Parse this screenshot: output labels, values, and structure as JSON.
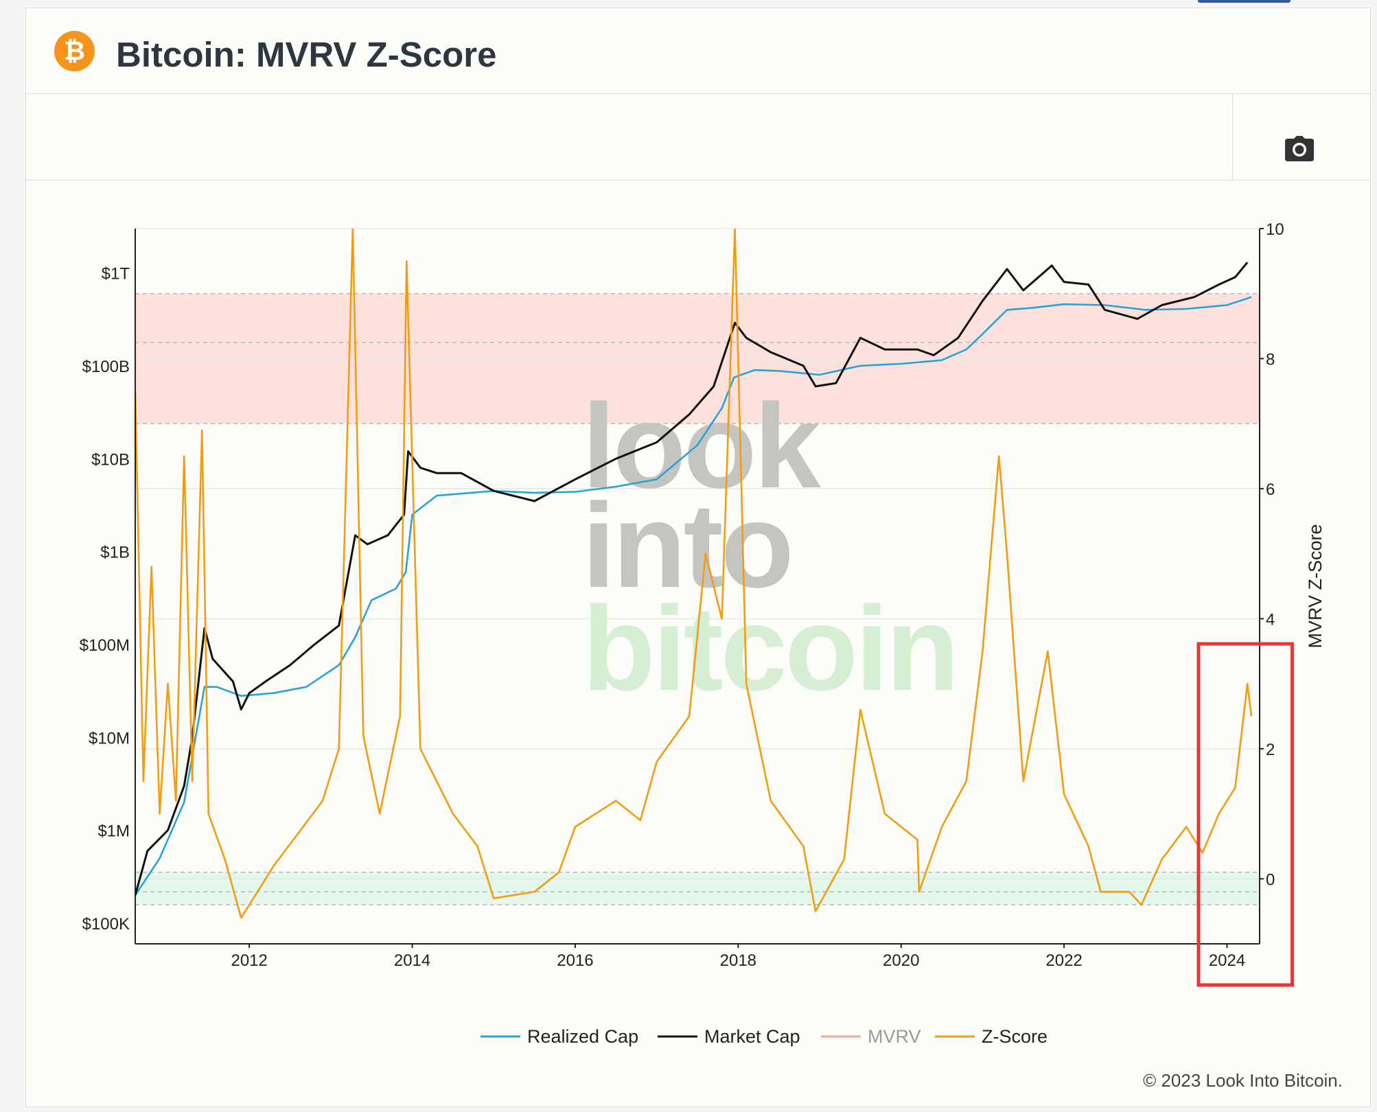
{
  "page": {
    "title": "Bitcoin: MVRV Z-Score",
    "copyright": "© 2023 Look Into Bitcoin.",
    "watermark": [
      "look",
      "into",
      "bitcoin"
    ]
  },
  "icons": {
    "logo": "bitcoin-icon",
    "toolbar": "camera-icon"
  },
  "chart_data": {
    "type": "line",
    "title": "Bitcoin: MVRV Z-Score",
    "x_ticks": [
      "2012",
      "2014",
      "2016",
      "2018",
      "2020",
      "2022",
      "2024"
    ],
    "x_range": [
      2010.6,
      2024.4
    ],
    "left_axis": {
      "scale": "log",
      "label": "",
      "range": [
        60000,
        3000000000000
      ],
      "tick_labels": [
        "$1T",
        "$100B",
        "$10B",
        "$1B",
        "$100M",
        "$10M",
        "$1M",
        "$100K"
      ],
      "tick_values": [
        1000000000000,
        100000000000,
        10000000000,
        1000000000,
        100000000,
        10000000,
        1000000,
        100000
      ]
    },
    "right_axis": {
      "scale": "linear",
      "label": "MVRV Z-Score",
      "range": [
        -1,
        10
      ],
      "tick_labels": [
        "10",
        "8",
        "6",
        "4",
        "2",
        "0"
      ],
      "tick_values": [
        10,
        8,
        6,
        4,
        2,
        0
      ]
    },
    "bands": [
      {
        "name": "overvalued zone",
        "axis": "right",
        "from": 7,
        "to": 9,
        "color": "#fde1dd"
      },
      {
        "name": "undervalued zone",
        "axis": "right",
        "from": -0.4,
        "to": 0.1,
        "color": "#e3f7ec"
      }
    ],
    "dashed_levels": [
      9,
      8.25,
      7,
      0.1,
      -0.2,
      -0.4
    ],
    "series": [
      {
        "name": "Realized Cap",
        "axis": "left",
        "color": "#29a3d6",
        "points": [
          [
            2010.6,
            200000.0
          ],
          [
            2010.9,
            500000.0
          ],
          [
            2011.2,
            2000000.0
          ],
          [
            2011.45,
            35000000.0
          ],
          [
            2011.6,
            35000000.0
          ],
          [
            2011.9,
            28000000.0
          ],
          [
            2012.3,
            30000000.0
          ],
          [
            2012.7,
            35000000.0
          ],
          [
            2013.1,
            60000000.0
          ],
          [
            2013.3,
            120000000.0
          ],
          [
            2013.5,
            300000000.0
          ],
          [
            2013.8,
            400000000.0
          ],
          [
            2013.92,
            600000000.0
          ],
          [
            2014.0,
            2500000000.0
          ],
          [
            2014.3,
            4000000000.0
          ],
          [
            2015.0,
            4500000000.0
          ],
          [
            2015.5,
            4300000000.0
          ],
          [
            2016.0,
            4400000000.0
          ],
          [
            2016.5,
            5000000000.0
          ],
          [
            2017.0,
            6000000000.0
          ],
          [
            2017.5,
            14000000000.0
          ],
          [
            2017.8,
            35000000000.0
          ],
          [
            2017.95,
            75000000000.0
          ],
          [
            2018.2,
            90000000000.0
          ],
          [
            2018.5,
            88000000000.0
          ],
          [
            2019.0,
            80000000000.0
          ],
          [
            2019.5,
            100000000000.0
          ],
          [
            2020.0,
            105000000000.0
          ],
          [
            2020.5,
            115000000000.0
          ],
          [
            2020.8,
            150000000000.0
          ],
          [
            2021.0,
            220000000000.0
          ],
          [
            2021.3,
            400000000000.0
          ],
          [
            2021.6,
            420000000000.0
          ],
          [
            2022.0,
            460000000000.0
          ],
          [
            2022.5,
            450000000000.0
          ],
          [
            2023.0,
            400000000000.0
          ],
          [
            2023.5,
            410000000000.0
          ],
          [
            2024.0,
            450000000000.0
          ],
          [
            2024.3,
            550000000000.0
          ]
        ]
      },
      {
        "name": "Market Cap",
        "axis": "left",
        "color": "#111111",
        "points": [
          [
            2010.6,
            200000.0
          ],
          [
            2010.75,
            600000.0
          ],
          [
            2011.0,
            1000000.0
          ],
          [
            2011.2,
            3000000.0
          ],
          [
            2011.3,
            10000000.0
          ],
          [
            2011.45,
            150000000.0
          ],
          [
            2011.55,
            70000000.0
          ],
          [
            2011.8,
            40000000.0
          ],
          [
            2011.9,
            20000000.0
          ],
          [
            2012.0,
            30000000.0
          ],
          [
            2012.2,
            40000000.0
          ],
          [
            2012.5,
            60000000.0
          ],
          [
            2012.8,
            100000000.0
          ],
          [
            2013.1,
            160000000.0
          ],
          [
            2013.3,
            1500000000.0
          ],
          [
            2013.45,
            1200000000.0
          ],
          [
            2013.7,
            1500000000.0
          ],
          [
            2013.9,
            2500000000.0
          ],
          [
            2013.95,
            12000000000.0
          ],
          [
            2014.1,
            8000000000.0
          ],
          [
            2014.3,
            7000000000.0
          ],
          [
            2014.6,
            7000000000.0
          ],
          [
            2015.0,
            4500000000.0
          ],
          [
            2015.5,
            3500000000.0
          ],
          [
            2016.0,
            6000000000.0
          ],
          [
            2016.5,
            10000000000.0
          ],
          [
            2017.0,
            15000000000.0
          ],
          [
            2017.4,
            30000000000.0
          ],
          [
            2017.7,
            60000000000.0
          ],
          [
            2017.96,
            290000000000.0
          ],
          [
            2018.1,
            200000000000.0
          ],
          [
            2018.4,
            140000000000.0
          ],
          [
            2018.8,
            100000000000.0
          ],
          [
            2018.95,
            60000000000.0
          ],
          [
            2019.2,
            65000000000.0
          ],
          [
            2019.5,
            200000000000.0
          ],
          [
            2019.8,
            150000000000.0
          ],
          [
            2020.2,
            150000000000.0
          ],
          [
            2020.4,
            130000000000.0
          ],
          [
            2020.7,
            200000000000.0
          ],
          [
            2021.0,
            500000000000.0
          ],
          [
            2021.3,
            1100000000000.0
          ],
          [
            2021.5,
            650000000000.0
          ],
          [
            2021.85,
            1200000000000.0
          ],
          [
            2022.0,
            800000000000.0
          ],
          [
            2022.3,
            750000000000.0
          ],
          [
            2022.5,
            400000000000.0
          ],
          [
            2022.9,
            320000000000.0
          ],
          [
            2023.2,
            450000000000.0
          ],
          [
            2023.6,
            550000000000.0
          ],
          [
            2023.9,
            750000000000.0
          ],
          [
            2024.1,
            900000000000.0
          ],
          [
            2024.25,
            1300000000000.0
          ]
        ]
      },
      {
        "name": "MVRV",
        "axis": "right",
        "color": "#f3a99c",
        "legend_only": true,
        "points": []
      },
      {
        "name": "Z-Score",
        "axis": "right",
        "color": "#f39c12",
        "points": [
          [
            2010.6,
            7.5
          ],
          [
            2010.7,
            1.5
          ],
          [
            2010.8,
            4.8
          ],
          [
            2010.9,
            1.0
          ],
          [
            2011.0,
            3.0
          ],
          [
            2011.1,
            1.2
          ],
          [
            2011.2,
            6.5
          ],
          [
            2011.3,
            1.5
          ],
          [
            2011.42,
            6.9
          ],
          [
            2011.5,
            1.0
          ],
          [
            2011.7,
            0.3
          ],
          [
            2011.9,
            -0.6
          ],
          [
            2012.0,
            -0.4
          ],
          [
            2012.3,
            0.2
          ],
          [
            2012.6,
            0.7
          ],
          [
            2012.9,
            1.2
          ],
          [
            2013.1,
            2.0
          ],
          [
            2013.27,
            10.0
          ],
          [
            2013.4,
            2.2
          ],
          [
            2013.6,
            1.0
          ],
          [
            2013.85,
            2.5
          ],
          [
            2013.93,
            9.5
          ],
          [
            2014.1,
            2.0
          ],
          [
            2014.5,
            1.0
          ],
          [
            2014.8,
            0.5
          ],
          [
            2015.0,
            -0.3
          ],
          [
            2015.5,
            -0.2
          ],
          [
            2015.8,
            0.1
          ],
          [
            2016.0,
            0.8
          ],
          [
            2016.5,
            1.2
          ],
          [
            2016.8,
            0.9
          ],
          [
            2017.0,
            1.8
          ],
          [
            2017.4,
            2.5
          ],
          [
            2017.6,
            5.0
          ],
          [
            2017.8,
            4.0
          ],
          [
            2017.96,
            10.0
          ],
          [
            2018.1,
            3.0
          ],
          [
            2018.4,
            1.2
          ],
          [
            2018.8,
            0.5
          ],
          [
            2018.95,
            -0.5
          ],
          [
            2019.3,
            0.3
          ],
          [
            2019.5,
            2.6
          ],
          [
            2019.8,
            1.0
          ],
          [
            2020.2,
            0.6
          ],
          [
            2020.22,
            -0.2
          ],
          [
            2020.5,
            0.8
          ],
          [
            2020.8,
            1.5
          ],
          [
            2021.0,
            3.5
          ],
          [
            2021.2,
            6.5
          ],
          [
            2021.3,
            5.0
          ],
          [
            2021.5,
            1.5
          ],
          [
            2021.8,
            3.5
          ],
          [
            2022.0,
            1.3
          ],
          [
            2022.3,
            0.5
          ],
          [
            2022.45,
            -0.2
          ],
          [
            2022.8,
            -0.2
          ],
          [
            2022.95,
            -0.4
          ],
          [
            2023.2,
            0.3
          ],
          [
            2023.5,
            0.8
          ],
          [
            2023.7,
            0.4
          ],
          [
            2023.9,
            1.0
          ],
          [
            2024.1,
            1.4
          ],
          [
            2024.25,
            3.0
          ],
          [
            2024.3,
            2.5
          ]
        ]
      }
    ],
    "highlight_box": {
      "x_from": 2023.65,
      "x_to": 2024.8,
      "color": "#e53935"
    },
    "legend": {
      "placement": "bottom-center",
      "entries": [
        "Realized Cap",
        "Market Cap",
        "MVRV",
        "Z-Score"
      ]
    },
    "grid": true
  }
}
